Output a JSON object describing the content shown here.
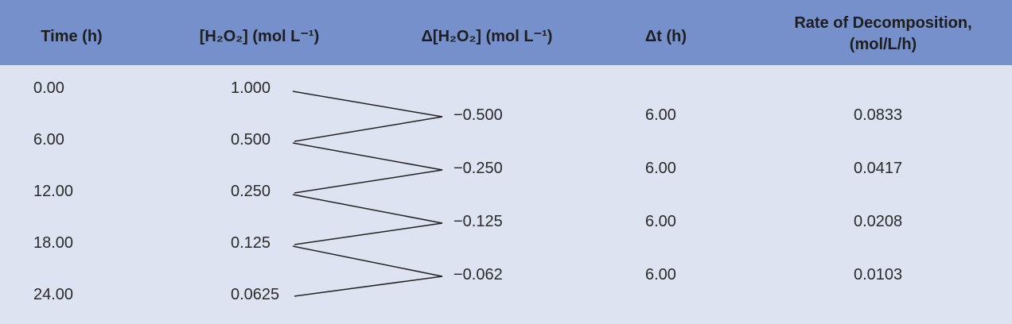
{
  "table": {
    "header": [
      [
        "Time (h)"
      ],
      [
        "[H₂O₂] (mol L⁻¹)"
      ],
      [
        "Δ[H₂O₂] (mol L⁻¹)"
      ],
      [
        "Δt (h)"
      ],
      [
        "Rate of Decomposition,",
        "(mol/L/h)"
      ]
    ],
    "time": [
      "0.00",
      "6.00",
      "12.00",
      "18.00",
      "24.00"
    ],
    "concentration": [
      "1.000",
      "0.500",
      "0.250",
      "0.125",
      "0.0625"
    ],
    "delta_concentration": [
      "−0.500",
      "−0.250",
      "−0.125",
      "−0.062"
    ],
    "delta_t": [
      "6.00",
      "6.00",
      "6.00",
      "6.00"
    ],
    "rate": [
      "0.0833",
      "0.0417",
      "0.0208",
      "0.0103"
    ]
  }
}
